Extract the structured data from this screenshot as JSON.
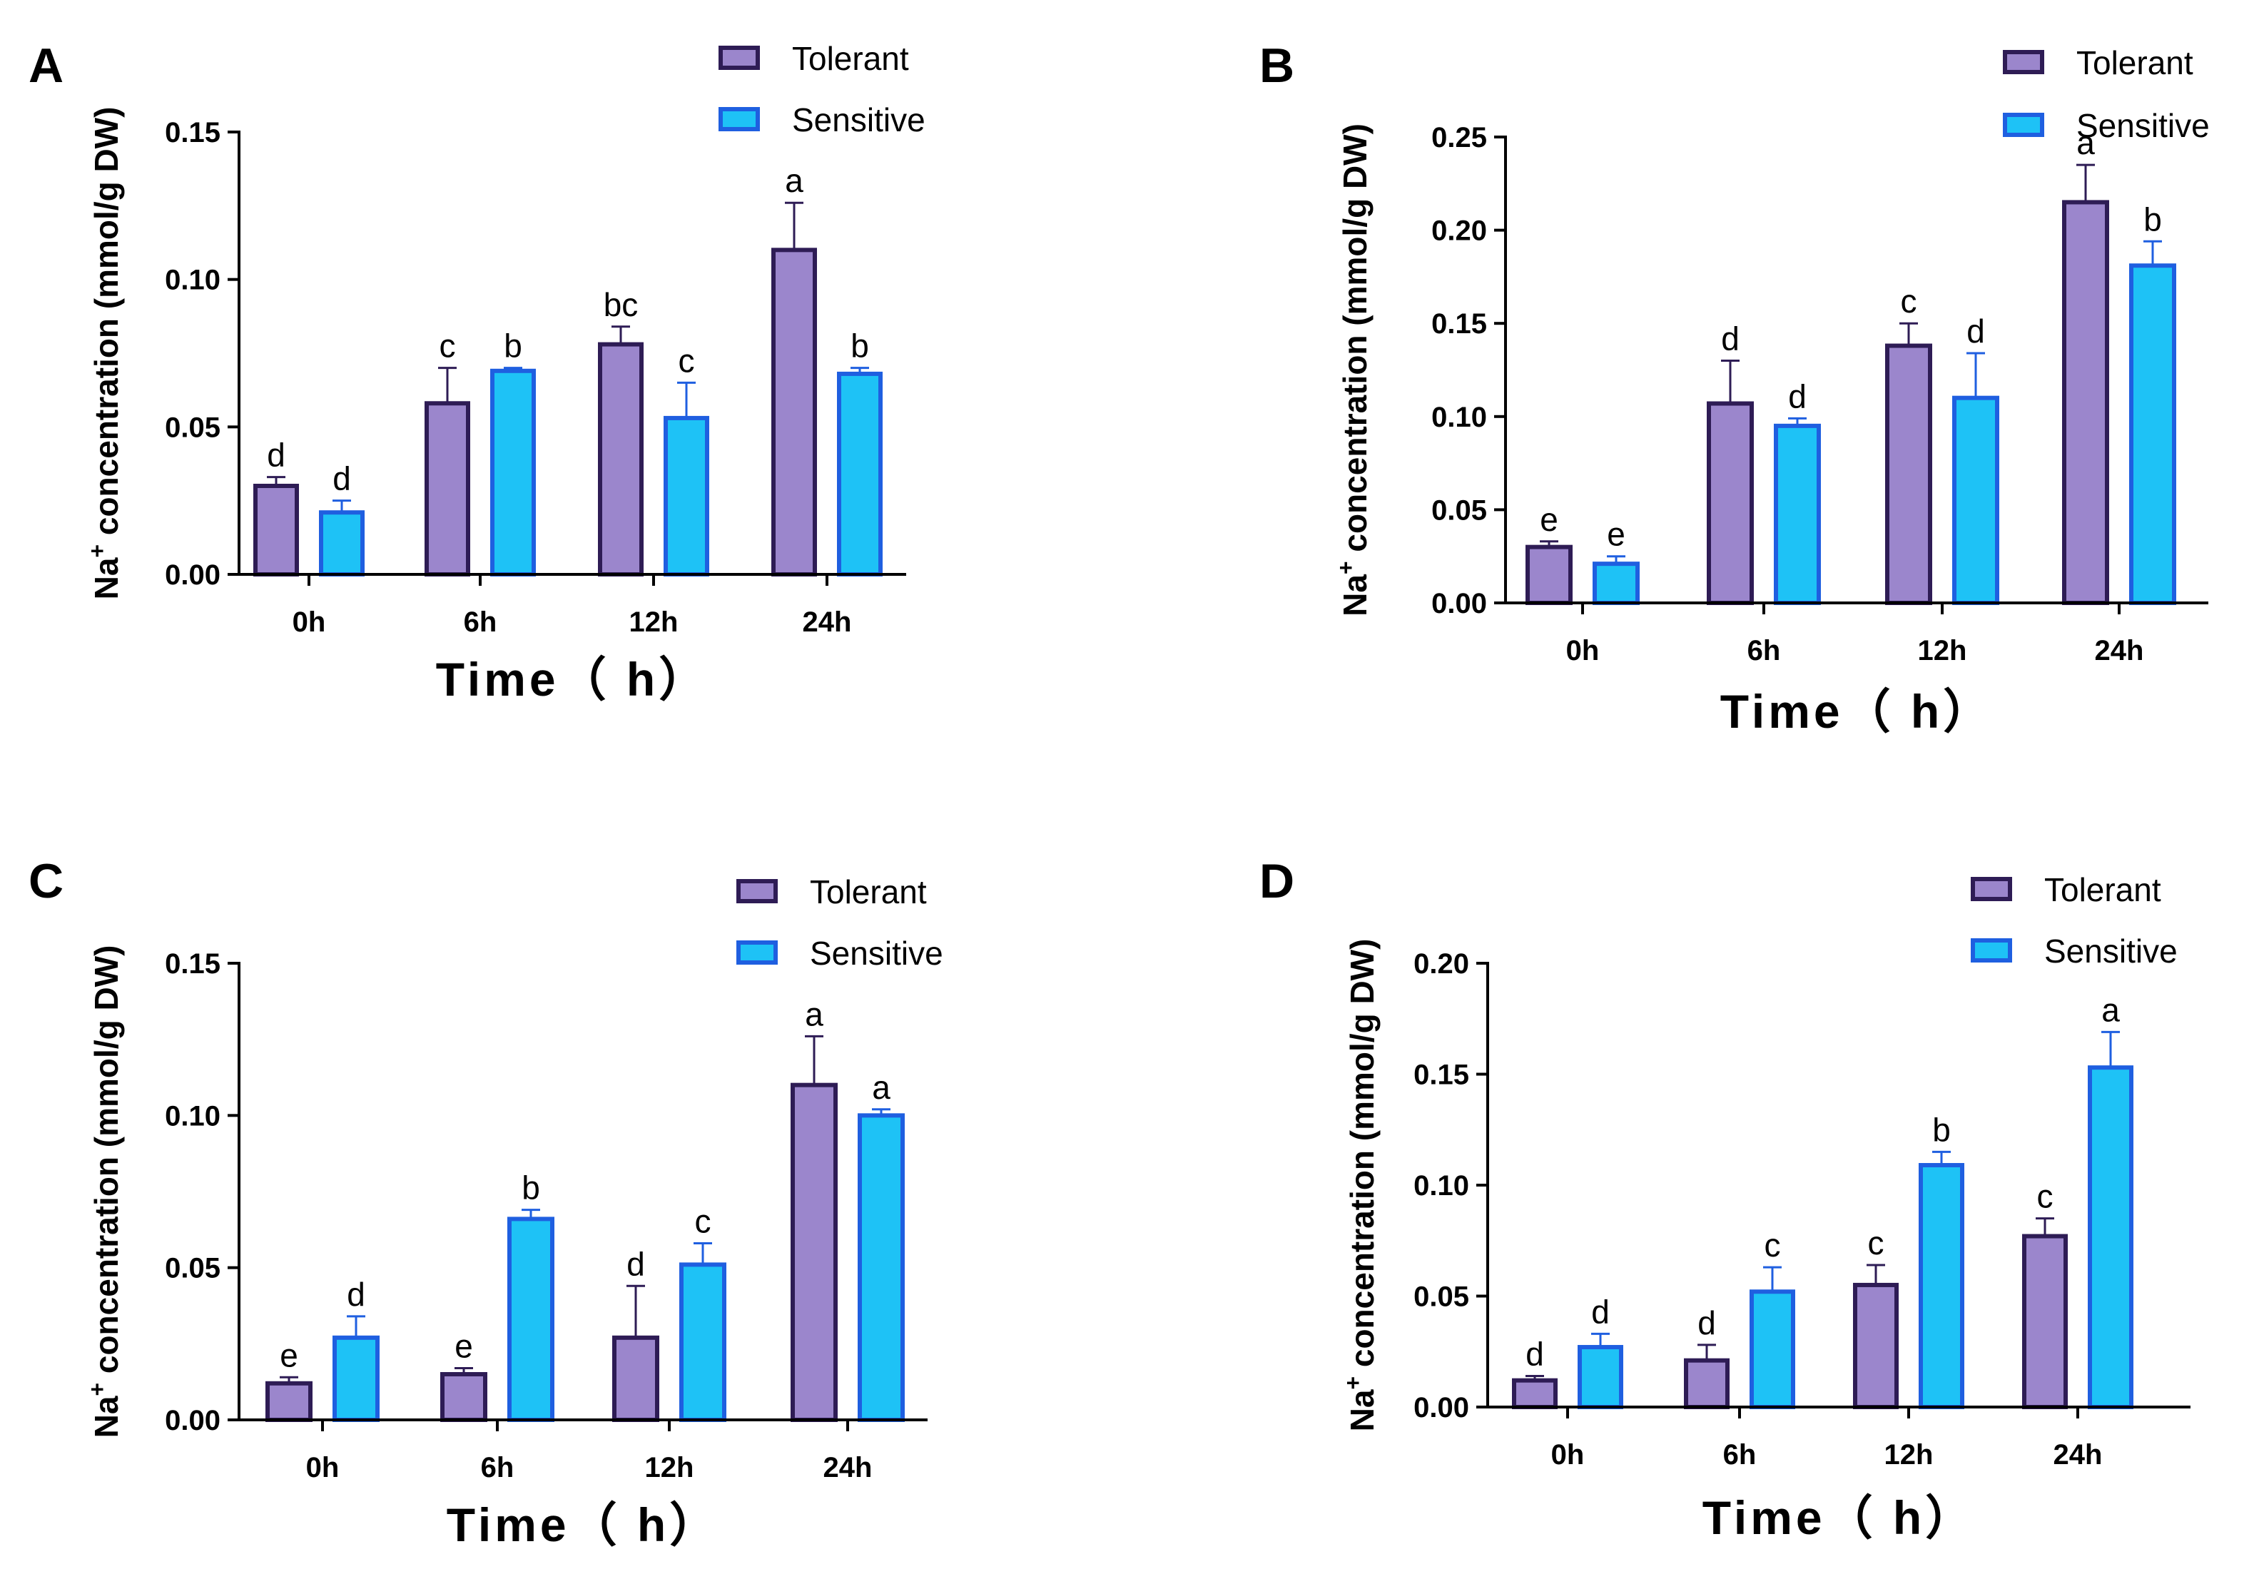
{
  "colors": {
    "tolerant_fill": "#9b86cc",
    "tolerant_stroke": "#2e1c55",
    "sensitive_fill": "#1ec2f6",
    "sensitive_stroke": "#1f5fe0",
    "axis": "#000000"
  },
  "chart_data": [
    {
      "panel": "A",
      "type": "bar",
      "categories": [
        "0h",
        "6h",
        "12h",
        "24h"
      ],
      "series": [
        {
          "name": "Tolerant",
          "values": [
            0.03,
            0.058,
            0.078,
            0.11
          ],
          "errors": [
            0.003,
            0.012,
            0.006,
            0.016
          ],
          "labels": [
            "d",
            "c",
            "bc",
            "a"
          ]
        },
        {
          "name": "Sensitive",
          "values": [
            0.021,
            0.069,
            0.053,
            0.068
          ],
          "errors": [
            0.004,
            0.001,
            0.012,
            0.002
          ],
          "labels": [
            "d",
            "b",
            "c",
            "b"
          ]
        }
      ],
      "ylim": [
        0,
        0.15
      ],
      "yticks": [
        "0.00",
        "0.05",
        "0.10",
        "0.15"
      ],
      "xlabel": "Time（ h）",
      "ylabel": {
        "prefix": "Na",
        "sup": "+",
        "rest": " concentration (mmol/g DW)"
      },
      "legend": "top-right"
    },
    {
      "panel": "B",
      "type": "bar",
      "categories": [
        "0h",
        "6h",
        "12h",
        "24h"
      ],
      "series": [
        {
          "name": "Tolerant",
          "values": [
            0.03,
            0.107,
            0.138,
            0.215
          ],
          "errors": [
            0.003,
            0.023,
            0.012,
            0.02
          ],
          "labels": [
            "e",
            "d",
            "c",
            "a"
          ]
        },
        {
          "name": "Sensitive",
          "values": [
            0.021,
            0.095,
            0.11,
            0.181
          ],
          "errors": [
            0.004,
            0.004,
            0.024,
            0.013
          ],
          "labels": [
            "e",
            "d",
            "d",
            "b"
          ]
        }
      ],
      "ylim": [
        0,
        0.25
      ],
      "yticks": [
        "0.00",
        "0.05",
        "0.10",
        "0.15",
        "0.20",
        "0.25"
      ],
      "xlabel": "Time（ h）",
      "ylabel": {
        "prefix": "Na",
        "sup": "+",
        "rest": " concentration (mmol/g DW)"
      },
      "legend": "top-right"
    },
    {
      "panel": "C",
      "type": "bar",
      "categories": [
        "0h",
        "6h",
        "12h",
        "24h"
      ],
      "series": [
        {
          "name": "Tolerant",
          "values": [
            0.012,
            0.015,
            0.027,
            0.11
          ],
          "errors": [
            0.002,
            0.002,
            0.017,
            0.016
          ],
          "labels": [
            "e",
            "e",
            "d",
            "a"
          ]
        },
        {
          "name": "Sensitive",
          "values": [
            0.027,
            0.066,
            0.051,
            0.1
          ],
          "errors": [
            0.007,
            0.003,
            0.007,
            0.002
          ],
          "labels": [
            "d",
            "b",
            "c",
            "a"
          ]
        }
      ],
      "ylim": [
        0,
        0.15
      ],
      "yticks": [
        "0.00",
        "0.05",
        "0.10",
        "0.15"
      ],
      "xlabel": "Time（ h）",
      "ylabel": {
        "prefix": "Na",
        "sup": "+",
        "rest": " concentration (mmol/g DW)"
      },
      "legend": "top-right"
    },
    {
      "panel": "D",
      "type": "bar",
      "categories": [
        "0h",
        "6h",
        "12h",
        "24h"
      ],
      "series": [
        {
          "name": "Tolerant",
          "values": [
            0.012,
            0.021,
            0.055,
            0.077
          ],
          "errors": [
            0.002,
            0.007,
            0.009,
            0.008
          ],
          "labels": [
            "d",
            "d",
            "c",
            "c"
          ]
        },
        {
          "name": "Sensitive",
          "values": [
            0.027,
            0.052,
            0.109,
            0.153
          ],
          "errors": [
            0.006,
            0.011,
            0.006,
            0.016
          ],
          "labels": [
            "d",
            "c",
            "b",
            "a"
          ]
        }
      ],
      "ylim": [
        0,
        0.2
      ],
      "yticks": [
        "0.00",
        "0.05",
        "0.10",
        "0.15",
        "0.20"
      ],
      "xlabel": "Time（ h）",
      "ylabel": {
        "prefix": "Na",
        "sup": "+",
        "rest": " concentration (mmol/g DW)"
      },
      "legend": "top-right"
    }
  ]
}
